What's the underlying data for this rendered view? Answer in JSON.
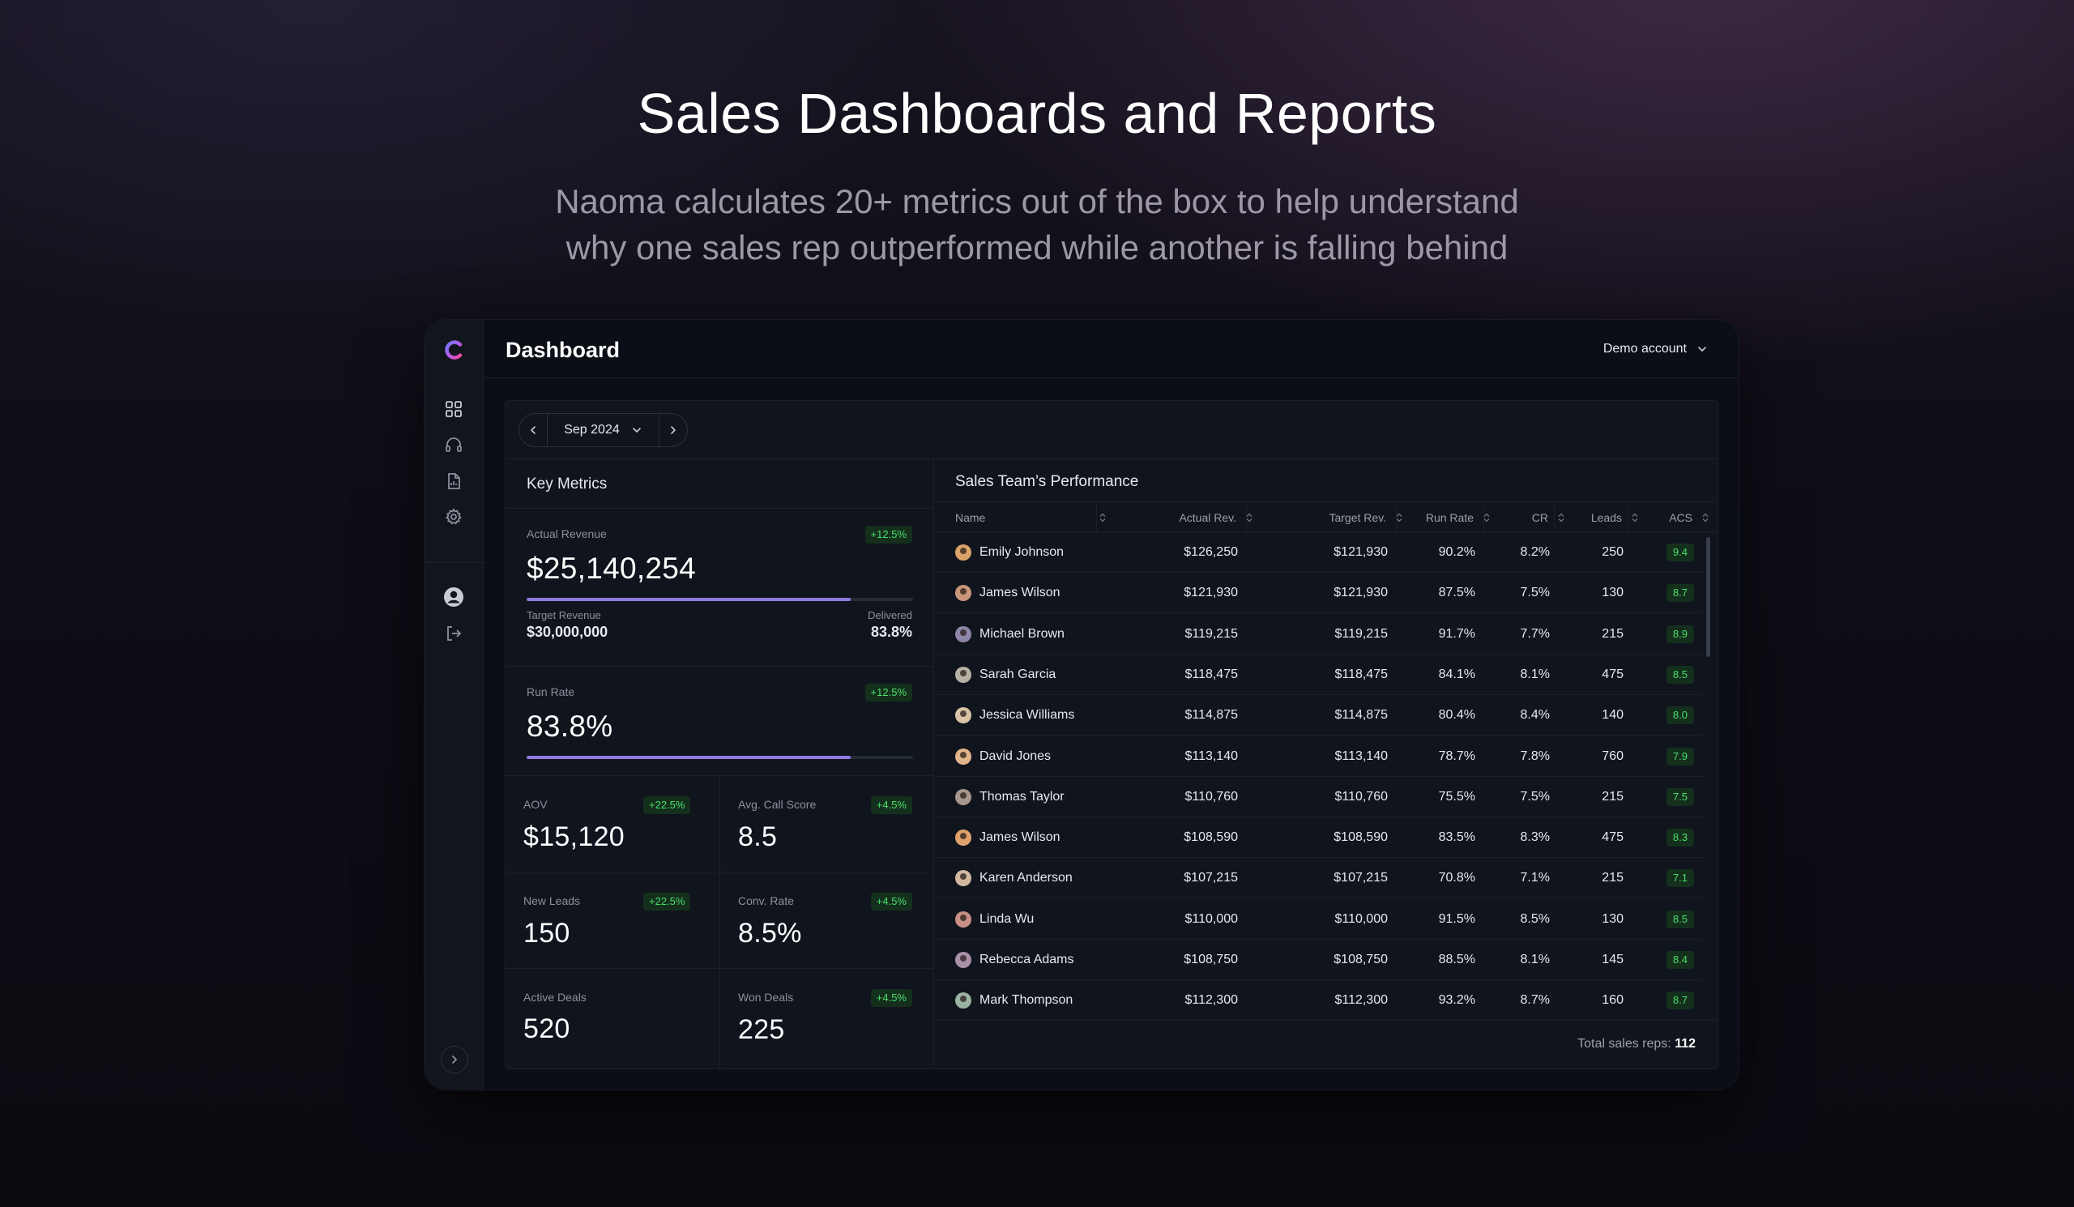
{
  "hero": {
    "title": "Sales Dashboards and Reports",
    "subtitle_line1": "Naoma calculates 20+ metrics out of the box to help understand",
    "subtitle_line2": "why one sales rep outperformed while another is falling behind"
  },
  "rail": {
    "icons": [
      "naoma-logo-icon",
      "dashboard-grid-icon",
      "headphones-icon",
      "report-document-icon",
      "settings-gear-icon",
      "user-avatar-icon",
      "logout-icon",
      "chevron-right-icon"
    ]
  },
  "header": {
    "title": "Dashboard",
    "account": "Demo account"
  },
  "date_nav": {
    "label": "Sep 2024"
  },
  "key_metrics": {
    "title": "Key Metrics",
    "actual_revenue": {
      "label": "Actual Revenue",
      "value": "$25,140,254",
      "change": "+12.5%",
      "progress_pct": 83.8
    },
    "target_revenue": {
      "label": "Target Revenue",
      "value": "$30,000,000"
    },
    "delivered": {
      "label": "Delivered",
      "value": "83.8%"
    },
    "run_rate": {
      "label": "Run Rate",
      "value": "83.8%",
      "change": "+12.5%",
      "progress_pct": 83.8
    },
    "aov": {
      "label": "AOV",
      "value": "$15,120",
      "change": "+22.5%"
    },
    "avg_call_score": {
      "label": "Avg. Call Score",
      "value": "8.5",
      "change": "+4.5%"
    },
    "new_leads": {
      "label": "New Leads",
      "value": "150",
      "change": "+22.5%"
    },
    "conv_rate": {
      "label": "Conv. Rate",
      "value": "8.5%",
      "change": "+4.5%"
    },
    "active_deals": {
      "label": "Active Deals",
      "value": "520"
    },
    "won_deals": {
      "label": "Won Deals",
      "value": "225",
      "change": "+4.5%"
    }
  },
  "performance": {
    "title": "Sales Team’s Performance",
    "columns": [
      "Name",
      "Actual Rev.",
      "Target Rev.",
      "Run Rate",
      "CR",
      "Leads",
      "ACS"
    ],
    "rows": [
      {
        "name": "Emily Johnson",
        "actual": "$126,250",
        "target": "$121,930",
        "run_rate": "90.2%",
        "cr": "8.2%",
        "leads": "250",
        "acs": "9.4",
        "avatar_color": "#d9a36a"
      },
      {
        "name": "James Wilson",
        "actual": "$121,930",
        "target": "$121,930",
        "run_rate": "87.5%",
        "cr": "7.5%",
        "leads": "130",
        "acs": "8.7",
        "avatar_color": "#c9957a"
      },
      {
        "name": "Michael Brown",
        "actual": "$119,215",
        "target": "$119,215",
        "run_rate": "91.7%",
        "cr": "7.7%",
        "leads": "215",
        "acs": "8.9",
        "avatar_color": "#8e86a8"
      },
      {
        "name": "Sarah Garcia",
        "actual": "$118,475",
        "target": "$118,475",
        "run_rate": "84.1%",
        "cr": "8.1%",
        "leads": "475",
        "acs": "8.5",
        "avatar_color": "#b7b0a4"
      },
      {
        "name": "Jessica Williams",
        "actual": "$114,875",
        "target": "$114,875",
        "run_rate": "80.4%",
        "cr": "8.4%",
        "leads": "140",
        "acs": "8.0",
        "avatar_color": "#d8c3a7"
      },
      {
        "name": "David Jones",
        "actual": "$113,140",
        "target": "$113,140",
        "run_rate": "78.7%",
        "cr": "7.8%",
        "leads": "760",
        "acs": "7.9",
        "avatar_color": "#e2b48a"
      },
      {
        "name": "Thomas Taylor",
        "actual": "$110,760",
        "target": "$110,760",
        "run_rate": "75.5%",
        "cr": "7.5%",
        "leads": "215",
        "acs": "7.5",
        "avatar_color": "#a8978d"
      },
      {
        "name": "James Wilson",
        "actual": "$108,590",
        "target": "$108,590",
        "run_rate": "83.5%",
        "cr": "8.3%",
        "leads": "475",
        "acs": "8.3",
        "avatar_color": "#e0a26e"
      },
      {
        "name": "Karen Anderson",
        "actual": "$107,215",
        "target": "$107,215",
        "run_rate": "70.8%",
        "cr": "7.1%",
        "leads": "215",
        "acs": "7.1",
        "avatar_color": "#d2b9a0"
      },
      {
        "name": "Linda Wu",
        "actual": "$110,000",
        "target": "$110,000",
        "run_rate": "91.5%",
        "cr": "8.5%",
        "leads": "130",
        "acs": "8.5",
        "avatar_color": "#c98f86"
      },
      {
        "name": "Rebecca Adams",
        "actual": "$108,750",
        "target": "$108,750",
        "run_rate": "88.5%",
        "cr": "8.1%",
        "leads": "145",
        "acs": "8.4",
        "avatar_color": "#a990a8"
      },
      {
        "name": "Mark Thompson",
        "actual": "$112,300",
        "target": "$112,300",
        "run_rate": "93.2%",
        "cr": "8.7%",
        "leads": "160",
        "acs": "8.7",
        "avatar_color": "#9bb3a2"
      }
    ],
    "total_label": "Total sales reps:",
    "total_value": "112"
  },
  "colors": {
    "accent_progress": "#8f7ae0",
    "positive": "#4ade6a",
    "panel_bg": "#10141d"
  }
}
